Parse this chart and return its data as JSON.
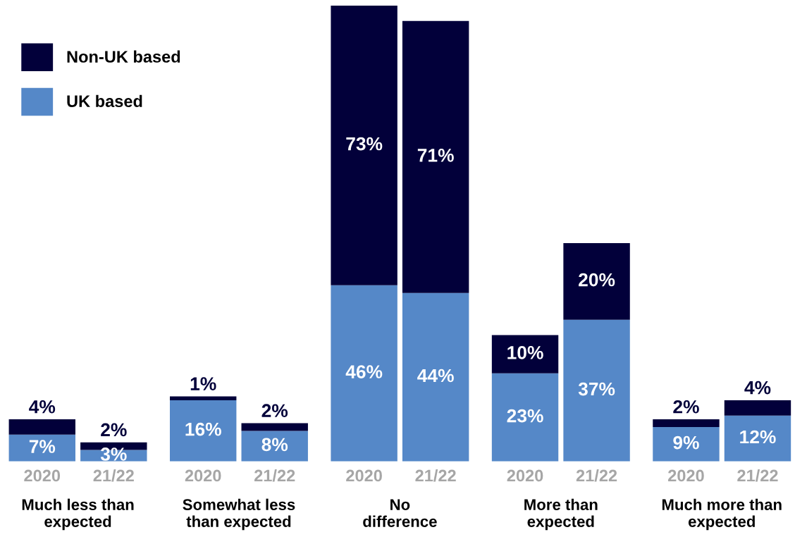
{
  "chart_data": {
    "type": "bar",
    "stacked": true,
    "legend": "top left",
    "tick_labels": "x",
    "grid": false,
    "categories": [
      "2020",
      "21/22",
      "2020",
      "21/22",
      "2020",
      "21/22",
      "2020",
      "21/22",
      "2020",
      "21/22"
    ],
    "series": [
      {
        "name": "UK based",
        "color": "#5588c8",
        "values": [
          7,
          3,
          16,
          8,
          46,
          44,
          23,
          37,
          9,
          12
        ],
        "value_labels": [
          "7%",
          "3%",
          "16%",
          "8%",
          "46%",
          "44%",
          "23%",
          "37%",
          "9%",
          "12%"
        ]
      },
      {
        "name": "Non-UK based",
        "color": "#02003a",
        "values": [
          4,
          2,
          1,
          2,
          73,
          71,
          10,
          20,
          2,
          4
        ],
        "value_labels": [
          "4%",
          "2%",
          "1%",
          "2%",
          "73%",
          "71%",
          "10%",
          "20%",
          "2%",
          "4%"
        ]
      }
    ],
    "annotations": [
      "Much less than\nexpected",
      "Somewhat less\nthan expected",
      "No\ndifference",
      "More than\nexpected",
      "Much more than\nexpected"
    ]
  }
}
